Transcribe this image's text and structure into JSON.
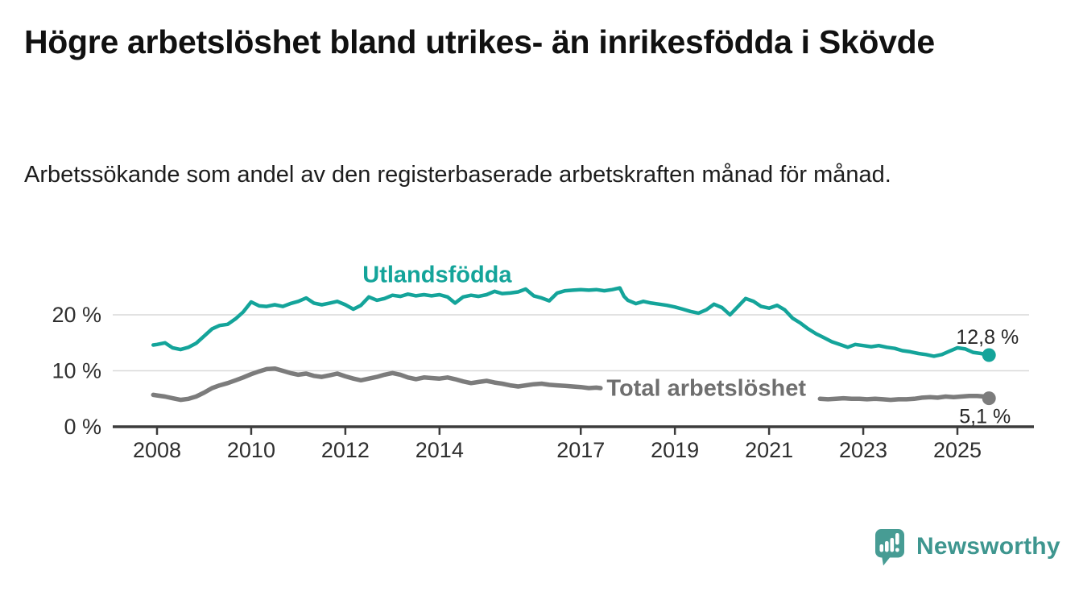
{
  "title": "Högre arbetslöshet bland utrikes- än inrikesfödda i Skövde",
  "subtitle": "Arbetssökande som andel av den registerbaserade arbetskraften månad för månad.",
  "branding": {
    "wordmark": "Newsworthy",
    "logo_icon": "speech-bubble-with-bar-chart-and-exclamation",
    "logo_color": "#479c94",
    "wordmark_color": "#3e968f"
  },
  "colors": {
    "grid": "#d9d9d9",
    "axis": "#3c3c3c",
    "tick_text": "#2f2f2f",
    "value_text": "#262626",
    "title_text": "#111111"
  },
  "chart_data": {
    "type": "line",
    "title": "Högre arbetslöshet bland utrikes- än inrikesfödda i Skövde",
    "subtitle": "Arbetssökande som andel av den registerbaserade arbetskraften månad för månad.",
    "grid": "horizontal",
    "legend_position": "inline-labels",
    "x_axis": {
      "ticks": [
        2008,
        2010,
        2012,
        2014,
        2017,
        2019,
        2021,
        2023,
        2025
      ],
      "range": [
        2007.8,
        2026.6
      ]
    },
    "y_axis": {
      "unit": "%",
      "ticks": [
        0,
        10,
        20
      ],
      "tick_labels": [
        "0 %",
        "10 %",
        "20 %"
      ],
      "range": [
        0,
        27.5
      ]
    },
    "series": [
      {
        "id": "total-arbetsloshet",
        "name": "Total arbetslöshet",
        "color": "#7c7c7c",
        "label_color": "#6f6f6f",
        "end_value": 5.1,
        "end_label": "5,1 %",
        "label_x": 2017.55,
        "label_y": 5.55,
        "label_anchor": "start",
        "segments": [
          [
            [
              2007.92,
              5.7
            ],
            [
              2008.0,
              5.6
            ],
            [
              2008.17,
              5.4
            ],
            [
              2008.33,
              5.1
            ],
            [
              2008.5,
              4.8
            ],
            [
              2008.67,
              5.0
            ],
            [
              2008.83,
              5.4
            ],
            [
              2009.0,
              6.1
            ],
            [
              2009.17,
              6.9
            ],
            [
              2009.33,
              7.4
            ],
            [
              2009.5,
              7.8
            ],
            [
              2009.67,
              8.3
            ],
            [
              2009.83,
              8.8
            ],
            [
              2010.0,
              9.4
            ],
            [
              2010.17,
              9.9
            ],
            [
              2010.33,
              10.3
            ],
            [
              2010.5,
              10.4
            ],
            [
              2010.67,
              10.0
            ],
            [
              2010.83,
              9.6
            ],
            [
              2011.0,
              9.3
            ],
            [
              2011.17,
              9.5
            ],
            [
              2011.33,
              9.1
            ],
            [
              2011.5,
              8.9
            ],
            [
              2011.67,
              9.2
            ],
            [
              2011.83,
              9.5
            ],
            [
              2012.0,
              9.0
            ],
            [
              2012.17,
              8.6
            ],
            [
              2012.33,
              8.3
            ],
            [
              2012.5,
              8.6
            ],
            [
              2012.67,
              8.9
            ],
            [
              2012.83,
              9.3
            ],
            [
              2013.0,
              9.6
            ],
            [
              2013.17,
              9.3
            ],
            [
              2013.33,
              8.8
            ],
            [
              2013.5,
              8.5
            ],
            [
              2013.67,
              8.8
            ],
            [
              2013.83,
              8.7
            ],
            [
              2014.0,
              8.6
            ],
            [
              2014.17,
              8.8
            ],
            [
              2014.33,
              8.5
            ],
            [
              2014.5,
              8.1
            ],
            [
              2014.67,
              7.8
            ],
            [
              2014.83,
              8.0
            ],
            [
              2015.0,
              8.2
            ],
            [
              2015.17,
              7.9
            ],
            [
              2015.33,
              7.7
            ],
            [
              2015.5,
              7.4
            ],
            [
              2015.67,
              7.2
            ],
            [
              2015.83,
              7.4
            ],
            [
              2016.0,
              7.6
            ],
            [
              2016.17,
              7.7
            ],
            [
              2016.33,
              7.5
            ],
            [
              2016.5,
              7.4
            ],
            [
              2016.67,
              7.3
            ],
            [
              2016.83,
              7.2
            ],
            [
              2017.0,
              7.1
            ],
            [
              2017.17,
              6.9
            ],
            [
              2017.33,
              7.0
            ],
            [
              2017.42,
              6.9
            ]
          ],
          [
            [
              2022.08,
              5.0
            ],
            [
              2022.25,
              4.9
            ],
            [
              2022.42,
              5.0
            ],
            [
              2022.58,
              5.1
            ],
            [
              2022.75,
              5.0
            ],
            [
              2022.92,
              5.0
            ],
            [
              2023.08,
              4.9
            ],
            [
              2023.25,
              5.0
            ],
            [
              2023.42,
              4.9
            ],
            [
              2023.58,
              4.8
            ],
            [
              2023.75,
              4.9
            ],
            [
              2023.92,
              4.9
            ],
            [
              2024.08,
              5.0
            ],
            [
              2024.25,
              5.2
            ],
            [
              2024.42,
              5.3
            ],
            [
              2024.58,
              5.2
            ],
            [
              2024.75,
              5.4
            ],
            [
              2024.92,
              5.3
            ],
            [
              2025.08,
              5.4
            ],
            [
              2025.25,
              5.5
            ],
            [
              2025.42,
              5.5
            ],
            [
              2025.58,
              5.4
            ],
            [
              2025.67,
              5.1
            ]
          ]
        ]
      },
      {
        "id": "utlandsfodda",
        "name": "Utlandsfödda",
        "color": "#14a49a",
        "label_color": "#14a49a",
        "end_value": 12.8,
        "end_label": "12,8 %",
        "label_x": 2013.95,
        "label_y": 25.85,
        "label_anchor": "middle",
        "segments": [
          [
            [
              2007.92,
              14.6
            ],
            [
              2008.0,
              14.7
            ],
            [
              2008.17,
              15.0
            ],
            [
              2008.33,
              14.1
            ],
            [
              2008.5,
              13.8
            ],
            [
              2008.67,
              14.2
            ],
            [
              2008.83,
              14.9
            ],
            [
              2009.0,
              16.2
            ],
            [
              2009.17,
              17.5
            ],
            [
              2009.33,
              18.1
            ],
            [
              2009.5,
              18.3
            ],
            [
              2009.67,
              19.3
            ],
            [
              2009.83,
              20.5
            ],
            [
              2010.0,
              22.3
            ],
            [
              2010.17,
              21.6
            ],
            [
              2010.33,
              21.5
            ],
            [
              2010.5,
              21.8
            ],
            [
              2010.67,
              21.5
            ],
            [
              2010.83,
              22.0
            ],
            [
              2011.0,
              22.4
            ],
            [
              2011.17,
              23.0
            ],
            [
              2011.33,
              22.1
            ],
            [
              2011.5,
              21.8
            ],
            [
              2011.67,
              22.1
            ],
            [
              2011.83,
              22.4
            ],
            [
              2012.0,
              21.8
            ],
            [
              2012.17,
              21.0
            ],
            [
              2012.33,
              21.7
            ],
            [
              2012.5,
              23.2
            ],
            [
              2012.67,
              22.6
            ],
            [
              2012.83,
              22.9
            ],
            [
              2013.0,
              23.5
            ],
            [
              2013.17,
              23.3
            ],
            [
              2013.33,
              23.7
            ],
            [
              2013.5,
              23.4
            ],
            [
              2013.67,
              23.6
            ],
            [
              2013.83,
              23.4
            ],
            [
              2014.0,
              23.6
            ],
            [
              2014.17,
              23.2
            ],
            [
              2014.33,
              22.1
            ],
            [
              2014.5,
              23.2
            ],
            [
              2014.67,
              23.5
            ],
            [
              2014.83,
              23.3
            ],
            [
              2015.0,
              23.6
            ],
            [
              2015.17,
              24.2
            ],
            [
              2015.33,
              23.8
            ],
            [
              2015.5,
              23.9
            ],
            [
              2015.67,
              24.1
            ],
            [
              2015.83,
              24.6
            ],
            [
              2016.0,
              23.4
            ],
            [
              2016.17,
              23.0
            ],
            [
              2016.33,
              22.5
            ],
            [
              2016.5,
              23.9
            ],
            [
              2016.67,
              24.3
            ],
            [
              2016.83,
              24.4
            ],
            [
              2017.0,
              24.5
            ],
            [
              2017.17,
              24.4
            ],
            [
              2017.33,
              24.5
            ],
            [
              2017.5,
              24.3
            ],
            [
              2017.67,
              24.5
            ],
            [
              2017.83,
              24.8
            ],
            [
              2017.92,
              23.3
            ],
            [
              2018.0,
              22.6
            ],
            [
              2018.17,
              22.0
            ],
            [
              2018.33,
              22.4
            ],
            [
              2018.5,
              22.1
            ],
            [
              2018.67,
              21.9
            ],
            [
              2018.83,
              21.7
            ],
            [
              2019.0,
              21.4
            ],
            [
              2019.17,
              21.0
            ],
            [
              2019.33,
              20.6
            ],
            [
              2019.5,
              20.3
            ],
            [
              2019.67,
              20.9
            ],
            [
              2019.83,
              21.9
            ],
            [
              2020.0,
              21.3
            ],
            [
              2020.17,
              20.0
            ],
            [
              2020.33,
              21.4
            ],
            [
              2020.5,
              22.9
            ],
            [
              2020.67,
              22.4
            ],
            [
              2020.83,
              21.5
            ],
            [
              2021.0,
              21.2
            ],
            [
              2021.17,
              21.7
            ],
            [
              2021.33,
              20.9
            ],
            [
              2021.5,
              19.4
            ],
            [
              2021.67,
              18.5
            ],
            [
              2021.83,
              17.5
            ],
            [
              2022.0,
              16.6
            ],
            [
              2022.17,
              15.9
            ],
            [
              2022.33,
              15.2
            ],
            [
              2022.5,
              14.7
            ],
            [
              2022.67,
              14.2
            ],
            [
              2022.83,
              14.7
            ],
            [
              2023.0,
              14.5
            ],
            [
              2023.17,
              14.3
            ],
            [
              2023.33,
              14.5
            ],
            [
              2023.5,
              14.2
            ],
            [
              2023.67,
              14.0
            ],
            [
              2023.83,
              13.6
            ],
            [
              2024.0,
              13.4
            ],
            [
              2024.17,
              13.1
            ],
            [
              2024.33,
              12.9
            ],
            [
              2024.5,
              12.6
            ],
            [
              2024.67,
              12.9
            ],
            [
              2024.83,
              13.5
            ],
            [
              2025.0,
              14.1
            ],
            [
              2025.17,
              13.9
            ],
            [
              2025.33,
              13.3
            ],
            [
              2025.5,
              13.1
            ],
            [
              2025.67,
              12.8
            ]
          ]
        ]
      }
    ]
  }
}
